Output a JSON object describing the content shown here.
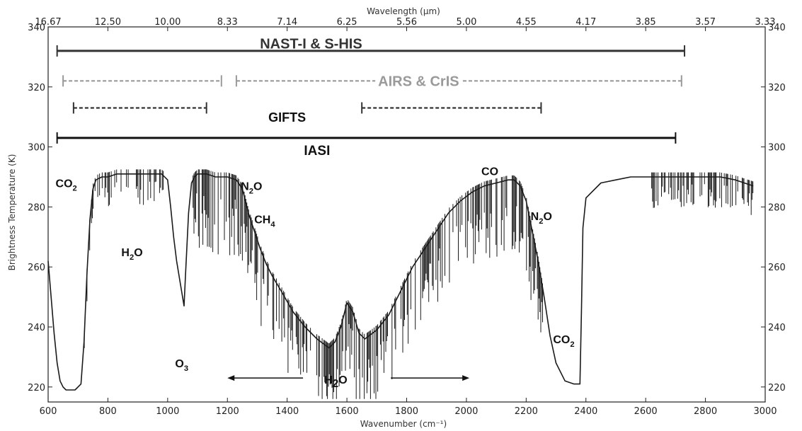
{
  "chart_data": {
    "type": "line",
    "title": "",
    "xlabel": "Wavenumber (cm⁻¹)",
    "x2label": "Wavelength (µm)",
    "ylabel": "Brightness Temperature (K)",
    "xlim": [
      600,
      3000
    ],
    "ylim": [
      215,
      340
    ],
    "xticks": [
      600,
      800,
      1000,
      1200,
      1400,
      1600,
      1800,
      2000,
      2200,
      2400,
      2600,
      2800,
      3000
    ],
    "yticks": [
      220,
      240,
      260,
      280,
      300,
      320,
      340
    ],
    "wavelength_ticks": [
      "16.67",
      "12.50",
      "10.00",
      "8.33",
      "7.14",
      "6.25",
      "5.56",
      "5.00",
      "4.55",
      "4.17",
      "3.85",
      "3.57",
      "3.33"
    ],
    "grid": false,
    "spectrum": {
      "x": [
        600,
        610,
        620,
        630,
        640,
        650,
        660,
        670,
        680,
        690,
        700,
        710,
        720,
        730,
        740,
        750,
        760,
        780,
        800,
        830,
        860,
        900,
        950,
        980,
        1000,
        1010,
        1020,
        1030,
        1040,
        1050,
        1055,
        1060,
        1070,
        1080,
        1090,
        1100,
        1130,
        1160,
        1200,
        1230,
        1250,
        1270,
        1290,
        1310,
        1330,
        1350,
        1380,
        1420,
        1460,
        1500,
        1540,
        1560,
        1580,
        1600,
        1620,
        1640,
        1660,
        1700,
        1740,
        1780,
        1820,
        1860,
        1900,
        1940,
        1980,
        2020,
        2060,
        2100,
        2140,
        2160,
        2180,
        2200,
        2220,
        2240,
        2260,
        2280,
        2300,
        2330,
        2360,
        2380,
        2385,
        2390,
        2400,
        2450,
        2500,
        2550,
        2600,
        2650,
        2700,
        2750,
        2800,
        2850,
        2900,
        2930,
        2960
      ],
      "y": [
        262,
        250,
        238,
        228,
        222,
        220,
        219,
        219,
        219,
        219,
        220,
        221,
        235,
        258,
        276,
        286,
        289,
        290,
        290,
        291,
        291,
        291,
        291,
        291,
        289,
        280,
        270,
        262,
        256,
        250,
        247,
        258,
        278,
        288,
        290,
        291,
        291,
        290,
        290,
        289,
        286,
        278,
        272,
        266,
        261,
        257,
        252,
        245,
        240,
        236,
        233,
        235,
        240,
        248,
        245,
        238,
        236,
        239,
        244,
        252,
        260,
        266,
        272,
        278,
        282,
        285,
        287,
        288,
        289,
        289,
        287,
        282,
        272,
        262,
        250,
        237,
        228,
        222,
        221,
        221,
        245,
        273,
        283,
        288,
        289,
        290,
        290,
        290,
        290,
        290,
        290,
        290,
        289,
        288,
        287
      ]
    },
    "ranges": [
      {
        "name": "NAST-I & S-HIS",
        "level": 332,
        "segments": [
          [
            630,
            2730
          ]
        ],
        "style": "solid",
        "color": "#333333",
        "label_x": 1480,
        "label_y": 334.5,
        "label_color": "#333333",
        "font": "serif",
        "label_size": 20
      },
      {
        "name": "AIRS & CrIS",
        "level": 322,
        "segments": [
          [
            650,
            1180
          ],
          [
            1230,
            2720
          ]
        ],
        "style": "dashed",
        "color": "#9a9a9a",
        "label_x": 1840,
        "label_y": 322,
        "label_color": "#9a9a9a",
        "font": "sans",
        "label_size": 20
      },
      {
        "name": "GIFTS",
        "level": 313,
        "segments": [
          [
            685,
            1130
          ],
          [
            1650,
            2250
          ]
        ],
        "style": "dashed",
        "color": "#333333",
        "label_x": 1400,
        "label_y": 310,
        "label_color": "#111111",
        "font": "sans",
        "label_size": 18
      },
      {
        "name": "IASI",
        "level": 303,
        "segments": [
          [
            630,
            2700
          ]
        ],
        "style": "solid",
        "color": "#111111",
        "label_x": 1500,
        "label_y": 299,
        "label_color": "#111111",
        "font": "sans",
        "label_size": 19
      }
    ],
    "annotations": [
      {
        "base": "CO",
        "sub": "2",
        "x": 625,
        "y": 288
      },
      {
        "base": "H",
        "sub": "2",
        "tail": "O",
        "x": 845,
        "y": 265
      },
      {
        "base": "O",
        "sub": "3",
        "x": 1025,
        "y": 228
      },
      {
        "base": "N",
        "sub": "2",
        "tail": "O",
        "x": 1245,
        "y": 287
      },
      {
        "base": "CH",
        "sub": "4",
        "x": 1290,
        "y": 276
      },
      {
        "base": "CO",
        "x": 2050,
        "y": 292
      },
      {
        "base": "N",
        "sub": "2",
        "tail": "O",
        "x": 2215,
        "y": 277
      },
      {
        "base": "CO",
        "sub": "2",
        "x": 2290,
        "y": 236
      }
    ],
    "h2o_band": {
      "base": "H",
      "sub": "2",
      "tail": "O",
      "x1": 1200,
      "x2": 2010,
      "y": 223,
      "label_x": 1600
    }
  }
}
